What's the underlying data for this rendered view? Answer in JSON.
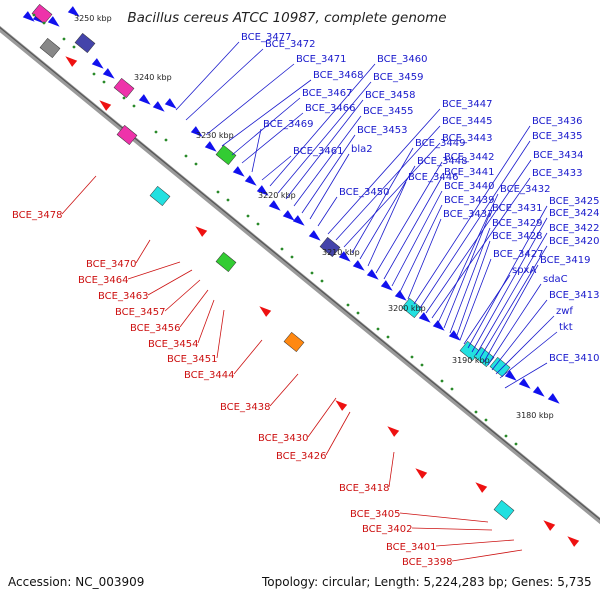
{
  "title": "Bacillus cereus ATCC 10987, complete genome",
  "footer": {
    "accession": "Accession: NC_003909",
    "summary": "Topology: circular; Length: 5,224,283 bp; Genes: 5,735"
  },
  "colors": {
    "backbone": "#888888",
    "forward_label": "#1a1acc",
    "reverse_label": "#cc1111",
    "forward_gene": "#1111ee",
    "reverse_gene": "#ee1111",
    "tick": "#2a8a2a"
  },
  "scale_ticks": [
    "3250 kbp",
    "3240 kbp",
    "3230 kbp",
    "3220 kbp",
    "3210 kbp",
    "3200 kbp",
    "3190 kbp",
    "3180 kbp"
  ],
  "forward_labels": [
    "BCE_3477",
    "BCE_3472",
    "BCE_3471",
    "BCE_3468",
    "BCE_3467",
    "BCE_3466",
    "BCE_3469",
    "BCE_3461",
    "BCE_3460",
    "BCE_3459",
    "BCE_3458",
    "BCE_3455",
    "BCE_3453",
    "bla2",
    "BCE_3450",
    "BCE_3447",
    "BCE_3445",
    "BCE_3443",
    "BCE_3449",
    "BCE_3448",
    "BCE_3446",
    "BCE_3442",
    "BCE_3441",
    "BCE_3440",
    "BCE_3439",
    "BCE_3437",
    "BCE_3436",
    "BCE_3435",
    "BCE_3434",
    "BCE_3433",
    "BCE_3432",
    "BCE_3431",
    "BCE_3429",
    "BCE_3428",
    "BCE_3427",
    "spxA",
    "BCE_3425",
    "BCE_3424",
    "BCE_3422",
    "BCE_3420",
    "BCE_3419",
    "sdaC",
    "BCE_3413",
    "zwf",
    "tkt",
    "BCE_3410"
  ],
  "reverse_labels": [
    "BCE_3478",
    "BCE_3470",
    "BCE_3464",
    "BCE_3463",
    "BCE_3457",
    "BCE_3456",
    "BCE_3454",
    "BCE_3451",
    "BCE_3444",
    "BCE_3438",
    "BCE_3430",
    "BCE_3426",
    "BCE_3418",
    "BCE_3405",
    "BCE_3402",
    "BCE_3401",
    "BCE_3398"
  ]
}
